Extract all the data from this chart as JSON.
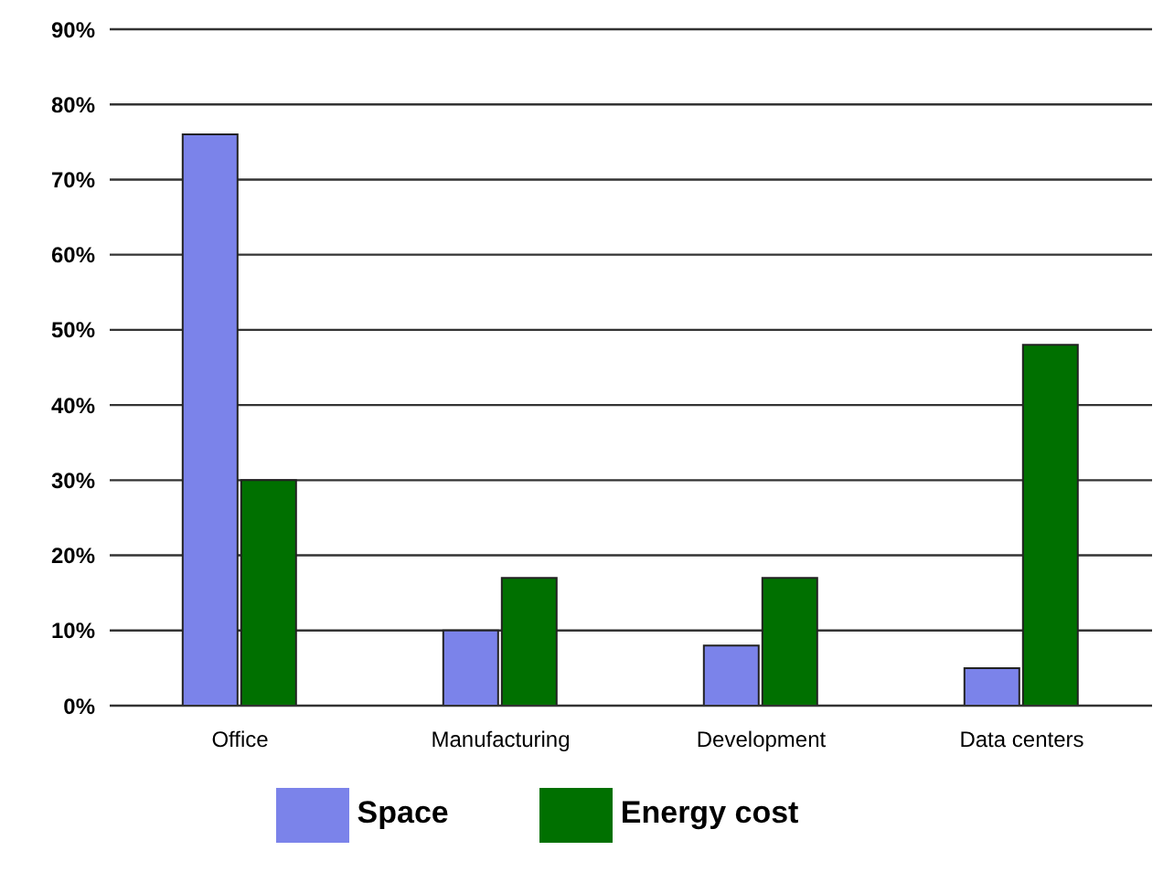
{
  "chart_data": {
    "type": "bar",
    "categories": [
      "Office",
      "Manufacturing",
      "Development",
      "Data centers"
    ],
    "series": [
      {
        "name": "Space",
        "color": "#7b83ea",
        "values": [
          76,
          10,
          8,
          5
        ]
      },
      {
        "name": "Energy cost",
        "color": "#007000",
        "values": [
          30,
          17,
          17,
          48
        ]
      }
    ],
    "ylim": [
      0,
      90
    ],
    "yticks": [
      {
        "value": 0,
        "label": "0%"
      },
      {
        "value": 10,
        "label": "10%"
      },
      {
        "value": 20,
        "label": "20%"
      },
      {
        "value": 30,
        "label": "30%"
      },
      {
        "value": 40,
        "label": "40%"
      },
      {
        "value": 50,
        "label": "50%"
      },
      {
        "value": 60,
        "label": "60%"
      },
      {
        "value": 70,
        "label": "70%"
      },
      {
        "value": 80,
        "label": "80%"
      },
      {
        "value": 90,
        "label": "90%"
      }
    ],
    "grid": "y",
    "legend": "bottom"
  }
}
